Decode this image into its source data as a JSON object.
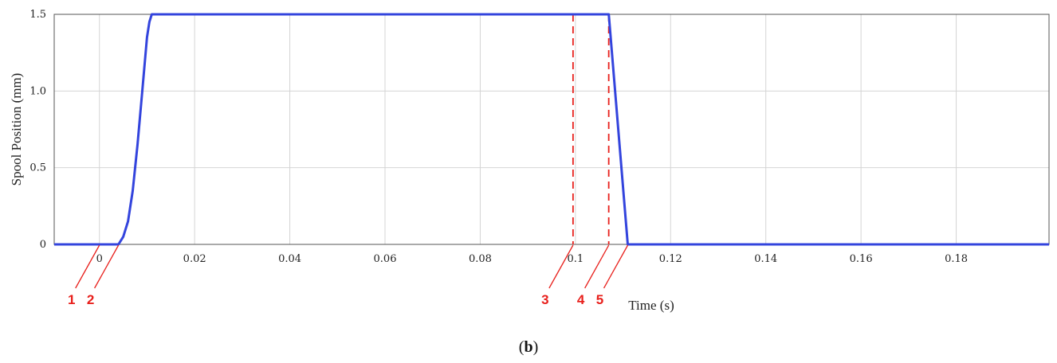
{
  "chart_data": {
    "type": "line",
    "xlabel": "Time (s)",
    "ylabel": "Spool Position (mm)",
    "xlim": [
      -0.0095,
      0.1995
    ],
    "ylim": [
      0,
      1.5
    ],
    "grid": true,
    "x_ticks": [
      {
        "value": 0,
        "label": "0"
      },
      {
        "value": 0.02,
        "label": "0.02"
      },
      {
        "value": 0.04,
        "label": "0.04"
      },
      {
        "value": 0.06,
        "label": "0.06"
      },
      {
        "value": 0.08,
        "label": "0.08"
      },
      {
        "value": 0.1,
        "label": "0.1"
      },
      {
        "value": 0.12,
        "label": "0.12"
      },
      {
        "value": 0.14,
        "label": "0.14"
      },
      {
        "value": 0.16,
        "label": "0.16"
      },
      {
        "value": 0.18,
        "label": "0.18"
      }
    ],
    "y_ticks": [
      {
        "value": 0,
        "label": "0"
      },
      {
        "value": 0.5,
        "label": "0.5"
      },
      {
        "value": 1.0,
        "label": "1.0"
      },
      {
        "value": 1.5,
        "label": "1.5"
      }
    ],
    "series": [
      {
        "color": "#3344dd",
        "x": [
          -0.0095,
          0.004,
          0.005,
          0.006,
          0.007,
          0.008,
          0.009,
          0.01,
          0.0105,
          0.011,
          0.107,
          0.111,
          0.1995
        ],
        "y": [
          0,
          0,
          0.05,
          0.15,
          0.35,
          0.65,
          1.0,
          1.35,
          1.45,
          1.5,
          1.5,
          0,
          0
        ]
      }
    ],
    "vlines": [
      {
        "x": 0.0995,
        "color": "#e8201c"
      },
      {
        "x": 0.107,
        "color": "#e8201c"
      }
    ],
    "annotations": [
      {
        "label": "1",
        "x": 0,
        "color": "#e8201c"
      },
      {
        "label": "2",
        "x": 0.004,
        "color": "#e8201c"
      },
      {
        "label": "3",
        "x": 0.0995,
        "color": "#e8201c"
      },
      {
        "label": "4",
        "x": 0.107,
        "color": "#e8201c"
      },
      {
        "label": "5",
        "x": 0.111,
        "color": "#e8201c"
      }
    ],
    "caption_prefix": "(",
    "caption_letter": "b",
    "caption_suffix": ")"
  }
}
